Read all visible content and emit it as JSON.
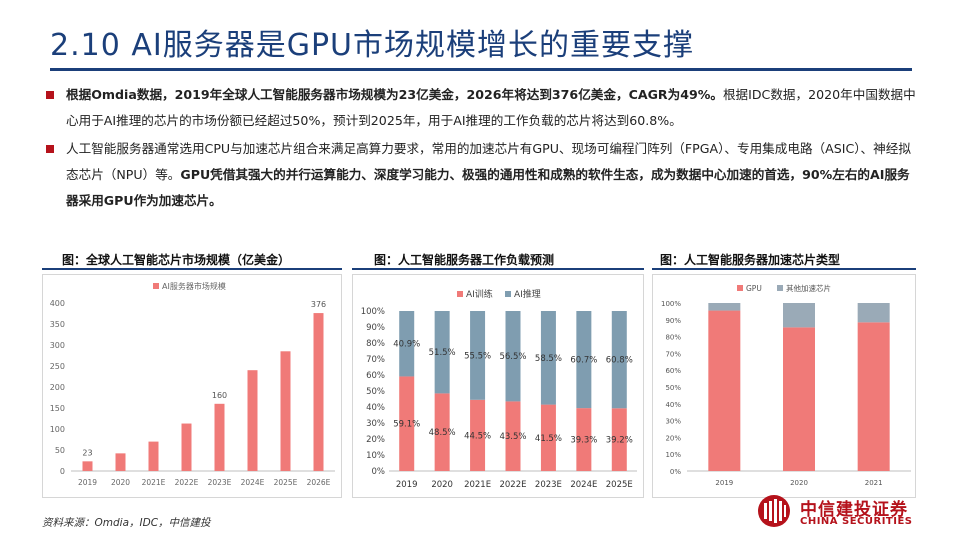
{
  "title": "2.10 AI服务器是GPU市场规模增长的重要支撑",
  "bullets": [
    {
      "bold": "根据Omdia数据，2019年全球人工智能服务器市场规模为23亿美金，2026年将达到376亿美金，CAGR为49%。",
      "normal": "根据IDC数据，2020年中国数据中心用于AI推理的芯片的市场份额已经超过50%，预计到2025年，用于AI推理的工作负载的芯片将达到60.8%。"
    },
    {
      "normal": "人工智能服务器通常选用CPU与加速芯片组合来满足高算力要求，常用的加速芯片有GPU、现场可编程门阵列（FPGA）、专用集成电路（ASIC）、神经拟态芯片（NPU）等。",
      "bold": "GPU凭借其强大的并行运算能力、深度学习能力、极强的通用性和成熟的软件生态，成为数据中心加速的首选，90%左右的AI服务器采用GPU作为加速芯片。"
    }
  ],
  "chart_titles": [
    "图：全球人工智能芯片市场规模（亿美金）",
    "图：人工智能服务器工作负载预测",
    "图：人工智能服务器加速芯片类型"
  ],
  "colors": {
    "coral": "#f07a78",
    "steel": "#7f9db0",
    "gray_blue": "#9aaab7",
    "navy": "#1b3f7a",
    "brand_red": "#b5121b"
  },
  "chart_data": [
    {
      "type": "bar",
      "title": "图：全球人工智能芯片市场规模（亿美金）",
      "legend": "AI服务器市场规模",
      "categories": [
        "2019",
        "2020",
        "2021E",
        "2022E",
        "2023E",
        "2024E",
        "2025E",
        "2026E"
      ],
      "values": [
        23,
        42,
        70,
        113,
        160,
        240,
        285,
        376
      ],
      "data_labels": [
        {
          "index": 0,
          "text": "23"
        },
        {
          "index": 4,
          "text": "160"
        },
        {
          "index": 7,
          "text": "376"
        }
      ],
      "ylim": [
        0,
        400
      ],
      "yticks": [
        "0",
        "50",
        "100",
        "150",
        "200",
        "250",
        "300",
        "350",
        "400"
      ]
    },
    {
      "type": "bar",
      "stacked": true,
      "title": "图：人工智能服务器工作负载预测",
      "categories": [
        "2019",
        "2020",
        "2021E",
        "2022E",
        "2023E",
        "2024E",
        "2025E"
      ],
      "series": [
        {
          "name": "AI训练",
          "values": [
            59.1,
            48.5,
            44.5,
            43.5,
            41.5,
            39.3,
            39.2
          ],
          "labels": [
            "59.1%",
            "48.5%",
            "44.5%",
            "43.5%",
            "41.5%",
            "39.3%",
            "39.2%"
          ]
        },
        {
          "name": "AI推理",
          "values": [
            40.9,
            51.5,
            55.5,
            56.5,
            58.5,
            60.7,
            60.8
          ],
          "labels": [
            "40.9%",
            "51.5%",
            "55.5%",
            "56.5%",
            "58.5%",
            "60.7%",
            "60.8%"
          ]
        }
      ],
      "ylim": [
        0,
        100
      ],
      "yticks": [
        "0%",
        "10%",
        "20%",
        "30%",
        "40%",
        "50%",
        "60%",
        "70%",
        "80%",
        "90%",
        "100%"
      ]
    },
    {
      "type": "bar",
      "stacked": true,
      "title": "图：人工智能服务器加速芯片类型",
      "categories": [
        "2019",
        "2020",
        "2021"
      ],
      "series": [
        {
          "name": "GPU",
          "values": [
            95.5,
            85.5,
            88.5
          ]
        },
        {
          "name": "其他加速芯片",
          "values": [
            4.5,
            14.5,
            11.5
          ]
        }
      ],
      "ylim": [
        0,
        100
      ],
      "yticks": [
        "0%",
        "10%",
        "20%",
        "30%",
        "40%",
        "50%",
        "60%",
        "70%",
        "80%",
        "90%",
        "100%"
      ]
    }
  ],
  "source": "资料来源：Omdia，IDC，中信建投",
  "logo": {
    "name_cn": "中信建投证券",
    "name_en": "CHINA SECURITIES"
  }
}
